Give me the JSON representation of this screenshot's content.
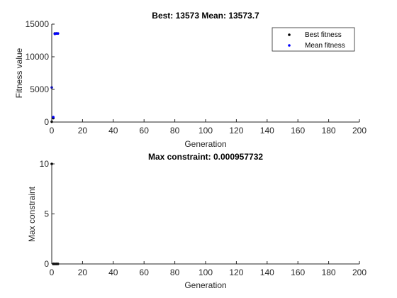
{
  "chart_data": [
    {
      "type": "scatter",
      "title": "Best: 13573 Mean: 13573.7",
      "xlabel": "Generation",
      "ylabel": "Fitness value",
      "xlim": [
        0,
        200
      ],
      "ylim": [
        0,
        15000
      ],
      "x_ticks": [
        0,
        20,
        40,
        60,
        80,
        100,
        120,
        140,
        160,
        180,
        200
      ],
      "y_ticks": [
        0,
        5000,
        10000,
        15000
      ],
      "y_tick_labels": [
        "0",
        "5000",
        "10000",
        "15000"
      ],
      "legend_position": "top-right",
      "grid": false,
      "series": [
        {
          "name": "Best fitness",
          "color": "#000000",
          "points": [
            [
              0,
              50
            ],
            [
              1,
              600
            ],
            [
              2,
              13573
            ],
            [
              3,
              13573
            ],
            [
              4,
              13573
            ]
          ]
        },
        {
          "name": "Mean fitness",
          "color": "#0000ff",
          "points": [
            [
              0,
              5300
            ],
            [
              1,
              750
            ],
            [
              2,
              13500
            ],
            [
              3,
              13580
            ],
            [
              4,
              13573.7
            ]
          ]
        }
      ]
    },
    {
      "type": "scatter",
      "title": "Max constraint: 0.000957732",
      "xlabel": "Generation",
      "ylabel": "Max constraint",
      "xlim": [
        0,
        200
      ],
      "ylim": [
        0,
        10
      ],
      "x_ticks": [
        0,
        20,
        40,
        60,
        80,
        100,
        120,
        140,
        160,
        180,
        200
      ],
      "y_ticks": [
        0,
        5,
        10
      ],
      "y_tick_labels": [
        "0",
        "5",
        "10"
      ],
      "grid": false,
      "series": [
        {
          "color": "#000000",
          "points": [
            [
              0,
              10
            ],
            [
              1,
              0.001
            ],
            [
              2,
              0.001
            ],
            [
              3,
              0.001
            ],
            [
              4,
              0.00095
            ]
          ]
        }
      ]
    }
  ]
}
